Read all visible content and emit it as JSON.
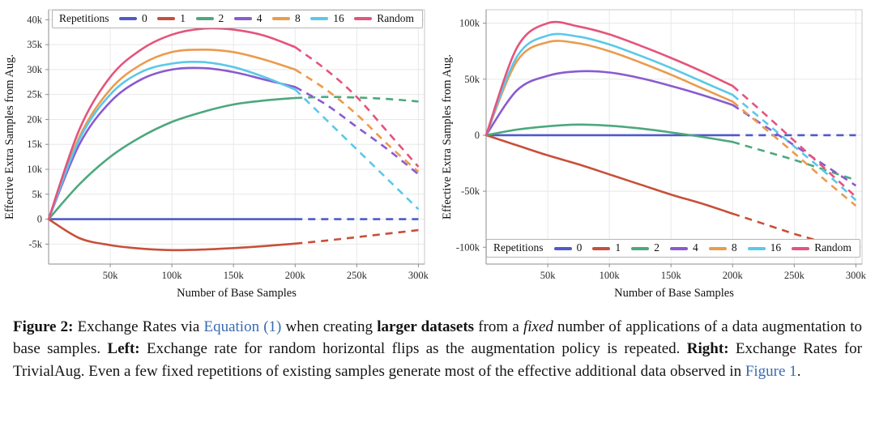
{
  "colors": {
    "background": "#ffffff",
    "link": "#3a6bb0",
    "grid": "#e8e8e8",
    "frame": "#c9c9c9",
    "axis": "#8c8c8c",
    "text": "#2a2a2a"
  },
  "caption": {
    "parts": [
      {
        "text": "Figure 2:",
        "style": "bold"
      },
      {
        "text": " Exchange Rates via ",
        "style": "normal"
      },
      {
        "text": "Equation (1)",
        "style": "link"
      },
      {
        "text": " when creating ",
        "style": "normal"
      },
      {
        "text": "larger datasets",
        "style": "bold"
      },
      {
        "text": " from a ",
        "style": "normal"
      },
      {
        "text": "fixed",
        "style": "italic"
      },
      {
        "text": " number of applications of a data augmentation to base samples. ",
        "style": "normal"
      },
      {
        "text": "Left:",
        "style": "bold"
      },
      {
        "text": " Exchange rate for random horizontal flips as the augmentation policy is repeated. ",
        "style": "normal"
      },
      {
        "text": "Right:",
        "style": "bold"
      },
      {
        "text": " Exchange Rates for TrivialAug. Even a few fixed repetitions of existing samples generate most of the effective additional data observed in ",
        "style": "normal"
      },
      {
        "text": "Figure 1",
        "style": "link"
      },
      {
        "text": ".",
        "style": "normal"
      }
    ]
  },
  "chart_data": [
    {
      "type": "line",
      "title": "",
      "xlabel": "Number of Base Samples",
      "ylabel": "Effective Extra Samples from Aug.",
      "legend_title": "Repetitions",
      "legend_position": "top",
      "xlim": [
        0,
        305000
      ],
      "ylim": [
        -9000,
        42000
      ],
      "solid_until": 200000,
      "xticks": [
        {
          "v": 50000,
          "label": "50k"
        },
        {
          "v": 100000,
          "label": "100k"
        },
        {
          "v": 150000,
          "label": "150k"
        },
        {
          "v": 200000,
          "label": "200k"
        },
        {
          "v": 250000,
          "label": "250k"
        },
        {
          "v": 300000,
          "label": "300k"
        }
      ],
      "yticks": [
        {
          "v": -5000,
          "label": "-5k"
        },
        {
          "v": 0,
          "label": "0"
        },
        {
          "v": 5000,
          "label": "5k"
        },
        {
          "v": 10000,
          "label": "10k"
        },
        {
          "v": 15000,
          "label": "15k"
        },
        {
          "v": 20000,
          "label": "20k"
        },
        {
          "v": 25000,
          "label": "25k"
        },
        {
          "v": 30000,
          "label": "30k"
        },
        {
          "v": 35000,
          "label": "35k"
        },
        {
          "v": 40000,
          "label": "40k"
        }
      ],
      "x": [
        0,
        25000,
        50000,
        75000,
        100000,
        125000,
        150000,
        175000,
        200000,
        225000,
        250000,
        275000,
        300000
      ],
      "series": [
        {
          "name": "0",
          "color": "#4f5ac8",
          "y": [
            0,
            0,
            0,
            0,
            0,
            0,
            0,
            0,
            0,
            0,
            0,
            0,
            0
          ]
        },
        {
          "name": "1",
          "color": "#c7503a",
          "y": [
            0,
            -3800,
            -5200,
            -5900,
            -6200,
            -6100,
            -5800,
            -5400,
            -4900,
            -4300,
            -3600,
            -2900,
            -2200
          ]
        },
        {
          "name": "2",
          "color": "#4da87d",
          "y": [
            0,
            7000,
            12500,
            16500,
            19500,
            21500,
            23000,
            23800,
            24300,
            24500,
            24400,
            24100,
            23600
          ]
        },
        {
          "name": "4",
          "color": "#8a5ad0",
          "y": [
            0,
            15000,
            23500,
            28000,
            30000,
            30300,
            29500,
            28000,
            26500,
            23000,
            18500,
            14000,
            9000
          ]
        },
        {
          "name": "8",
          "color": "#eb9b4d",
          "y": [
            0,
            16500,
            26000,
            31000,
            33500,
            34000,
            33500,
            32000,
            30000,
            26000,
            21000,
            15000,
            9500
          ]
        },
        {
          "name": "16",
          "color": "#5bc8e8",
          "y": [
            0,
            16000,
            25000,
            29500,
            31200,
            31500,
            30500,
            28500,
            26000,
            20000,
            14000,
            8000,
            2000
          ]
        },
        {
          "name": "Random",
          "color": "#e4547c",
          "y": [
            0,
            18000,
            28500,
            34000,
            37000,
            38200,
            38000,
            36800,
            34500,
            30000,
            24500,
            17500,
            10500
          ]
        }
      ]
    },
    {
      "type": "line",
      "title": "",
      "xlabel": "Number of Base Samples",
      "ylabel": "Effective Extra Samples from Aug.",
      "legend_title": "Repetitions",
      "legend_position": "bottom",
      "xlim": [
        0,
        305000
      ],
      "ylim": [
        -115000,
        112000
      ],
      "solid_until": 200000,
      "xticks": [
        {
          "v": 50000,
          "label": "50k"
        },
        {
          "v": 100000,
          "label": "100k"
        },
        {
          "v": 150000,
          "label": "150k"
        },
        {
          "v": 200000,
          "label": "200k"
        },
        {
          "v": 250000,
          "label": "250k"
        },
        {
          "v": 300000,
          "label": "300k"
        }
      ],
      "yticks": [
        {
          "v": -100000,
          "label": "-100k"
        },
        {
          "v": -50000,
          "label": "-50k"
        },
        {
          "v": 0,
          "label": "0"
        },
        {
          "v": 50000,
          "label": "50k"
        },
        {
          "v": 100000,
          "label": "100k"
        }
      ],
      "x": [
        0,
        25000,
        50000,
        75000,
        100000,
        125000,
        150000,
        175000,
        200000,
        225000,
        250000,
        275000,
        300000
      ],
      "series": [
        {
          "name": "0",
          "color": "#4f5ac8",
          "y": [
            0,
            0,
            0,
            0,
            0,
            0,
            0,
            0,
            0,
            0,
            0,
            0,
            0
          ]
        },
        {
          "name": "1",
          "color": "#c7503a",
          "y": [
            0,
            -9000,
            -18000,
            -26000,
            -35000,
            -44000,
            -53000,
            -61000,
            -70000,
            -79000,
            -88000,
            -96000,
            -105000
          ]
        },
        {
          "name": "2",
          "color": "#4da87d",
          "y": [
            0,
            5000,
            8000,
            9500,
            8500,
            6000,
            2500,
            -1500,
            -6000,
            -14000,
            -22000,
            -31000,
            -40000
          ]
        },
        {
          "name": "4",
          "color": "#8a5ad0",
          "y": [
            0,
            40000,
            53000,
            57000,
            56000,
            51000,
            44000,
            36000,
            27000,
            9000,
            -9000,
            -27000,
            -45000
          ]
        },
        {
          "name": "8",
          "color": "#eb9b4d",
          "y": [
            0,
            66000,
            83000,
            82000,
            75000,
            65000,
            54000,
            42000,
            30000,
            7000,
            -16000,
            -40000,
            -63000
          ]
        },
        {
          "name": "16",
          "color": "#5bc8e8",
          "y": [
            0,
            70000,
            89000,
            88000,
            81000,
            71000,
            60000,
            48000,
            36000,
            13000,
            -10000,
            -33000,
            -58000
          ]
        },
        {
          "name": "Random",
          "color": "#e4547c",
          "y": [
            0,
            78000,
            100000,
            97000,
            90000,
            80000,
            69000,
            57000,
            44000,
            20000,
            -5000,
            -30000,
            -55000
          ]
        }
      ]
    }
  ]
}
